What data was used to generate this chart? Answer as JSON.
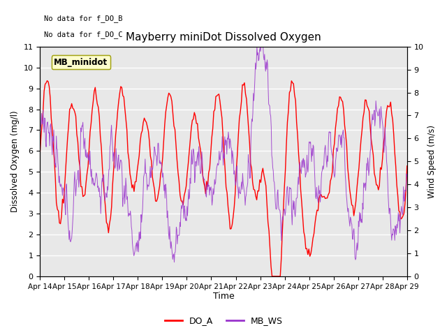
{
  "title": "Mayberry miniDot Dissolved Oxygen",
  "ylabel_left": "Dissolved Oxygen (mg/l)",
  "ylabel_right": "Wind Speed (m/s)",
  "xlabel": "Time",
  "ylim_left": [
    0,
    11
  ],
  "ylim_right": [
    0,
    10
  ],
  "yticks_left": [
    0.0,
    1.0,
    2.0,
    3.0,
    4.0,
    5.0,
    6.0,
    7.0,
    8.0,
    9.0,
    10.0,
    11.0
  ],
  "yticks_right": [
    0.0,
    1.0,
    2.0,
    3.0,
    4.0,
    5.0,
    6.0,
    7.0,
    8.0,
    9.0,
    10.0
  ],
  "annotation_lines": [
    "No data for f_DO_B",
    "No data for f_DO_C"
  ],
  "legend_box_label": "MB_minidot",
  "legend_entries": [
    "DO_A",
    "MB_WS"
  ],
  "do_color": "#ff0000",
  "ws_color": "#9933cc",
  "plot_bg": "#e8e8e8",
  "n_points_do": 360,
  "n_points_ws": 720
}
